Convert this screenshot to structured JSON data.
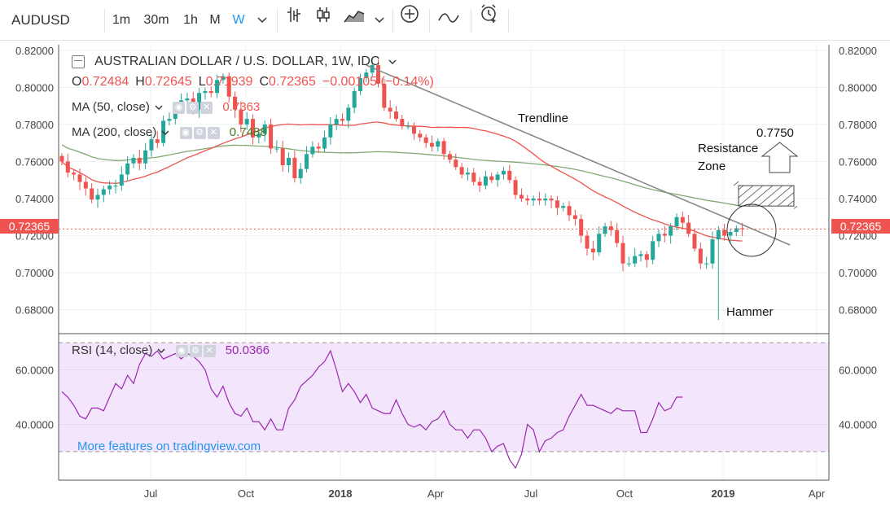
{
  "toolbar": {
    "symbol": "AUDUSD",
    "intervals": [
      "1m",
      "30m",
      "1h",
      "M",
      "W"
    ],
    "active_interval": "W",
    "icons": [
      "chevron-down-icon",
      "bar-style-icon",
      "candle-style-icon",
      "area-style-icon",
      "chevron-down-icon",
      "add-compare-icon",
      "indicator-icon",
      "alert-clock-icon"
    ]
  },
  "legend": {
    "title": "AUSTRALIAN DOLLAR / U.S. DOLLAR, 1W, IDC",
    "open_label": "O",
    "open": "0.72484",
    "high_label": "H",
    "high": "0.72645",
    "low_label": "L",
    "low": "0.71939",
    "close_label": "C",
    "close": "0.72365",
    "change": "−0.00105 (−0.14%)",
    "ma50_label": "MA (50, close)",
    "ma50_value": "0.7363",
    "ma200_label": "MA (200, close)",
    "ma200_value": "0.7488",
    "rsi_label": "RSI (14, close)",
    "rsi_value": "50.0366"
  },
  "annotations": {
    "trendline": "Trendline",
    "resistance_line1": "Resistance",
    "resistance_line2": "Zone",
    "target": "0.7750",
    "hammer": "Hammer",
    "price_tag": "0.72365"
  },
  "promo": "More features on tradingview.com",
  "colors": {
    "up": "#26a69a",
    "down": "#ef5350",
    "ma50": "#ef5350",
    "ma200": "#81a872",
    "rsi": "#9c27b0",
    "rsi_bg": "#f3e5fb",
    "accent": "#2196f3"
  },
  "chart_data": [
    {
      "type": "candlestick",
      "title": "AUSTRALIAN DOLLAR / U.S. DOLLAR, 1W, IDC",
      "x_ticks": [
        "Jul",
        "Oct",
        "2018",
        "Apr",
        "Jul",
        "Oct",
        "2019",
        "Apr"
      ],
      "y_ticks": [
        "0.68000",
        "0.70000",
        "0.72000",
        "0.74000",
        "0.76000",
        "0.78000",
        "0.80000",
        "0.82000"
      ],
      "ylim": [
        0.668,
        0.823
      ],
      "grid": true,
      "closes": [
        0.76,
        0.754,
        0.753,
        0.749,
        0.7455,
        0.7395,
        0.742,
        0.745,
        0.747,
        0.747,
        0.753,
        0.759,
        0.762,
        0.759,
        0.766,
        0.772,
        0.77,
        0.782,
        0.783,
        0.789,
        0.793,
        0.794,
        0.788,
        0.797,
        0.798,
        0.797,
        0.804,
        0.806,
        0.795,
        0.788,
        0.78,
        0.783,
        0.773,
        0.775,
        0.78,
        0.767,
        0.767,
        0.758,
        0.762,
        0.751,
        0.756,
        0.764,
        0.768,
        0.767,
        0.773,
        0.78,
        0.783,
        0.782,
        0.789,
        0.798,
        0.805,
        0.808,
        0.812,
        0.802,
        0.789,
        0.787,
        0.783,
        0.779,
        0.779,
        0.775,
        0.773,
        0.77,
        0.768,
        0.771,
        0.764,
        0.761,
        0.757,
        0.753,
        0.754,
        0.749,
        0.747,
        0.752,
        0.75,
        0.753,
        0.755,
        0.75,
        0.742,
        0.74,
        0.739,
        0.74,
        0.739,
        0.74,
        0.739,
        0.735,
        0.736,
        0.731,
        0.729,
        0.72,
        0.713,
        0.711,
        0.721,
        0.725,
        0.723,
        0.716,
        0.705,
        0.705,
        0.709,
        0.71,
        0.707,
        0.717,
        0.721,
        0.72,
        0.725,
        0.73,
        0.727,
        0.721,
        0.713,
        0.705,
        0.705,
        0.718,
        0.723,
        0.72,
        0.722,
        0.724,
        0.7236
      ],
      "ma50_label": "MA (50, close)",
      "ma50_last": 0.7363,
      "ma200_label": "MA (200, close)",
      "ma200_last": 0.7488,
      "hammer_low": 0.6745,
      "resistance_zone": [
        0.736,
        0.747
      ],
      "target": 0.775,
      "trendline": [
        [
          0.812,
          0.715
        ]
      ]
    },
    {
      "type": "line",
      "title": "RSI (14, close)",
      "y_ticks": [
        "40.0000",
        "60.0000"
      ],
      "band": [
        30,
        70
      ],
      "last_value": 50.0366,
      "values": [
        52,
        50,
        47,
        43,
        42,
        46,
        46,
        45,
        50,
        55,
        53,
        58,
        55,
        62,
        66,
        65,
        67,
        64,
        65,
        66,
        64,
        66,
        65,
        63,
        60,
        53,
        50,
        54,
        48,
        44,
        43,
        46,
        41,
        41,
        38,
        42,
        38,
        38,
        46,
        49,
        54,
        56,
        58,
        61,
        63,
        67,
        60,
        52,
        55,
        52,
        48,
        51,
        46,
        45,
        44,
        44,
        49,
        44,
        40,
        39,
        40,
        38,
        41,
        42,
        45,
        40,
        38,
        38,
        35,
        38,
        38,
        35,
        30,
        32,
        33,
        27,
        24,
        29,
        40,
        38,
        30,
        34,
        35,
        37,
        38,
        43,
        47,
        51,
        47,
        47,
        46,
        45,
        44,
        46,
        45,
        45,
        45,
        37,
        37,
        42,
        48,
        45,
        46,
        50,
        50
      ]
    }
  ]
}
